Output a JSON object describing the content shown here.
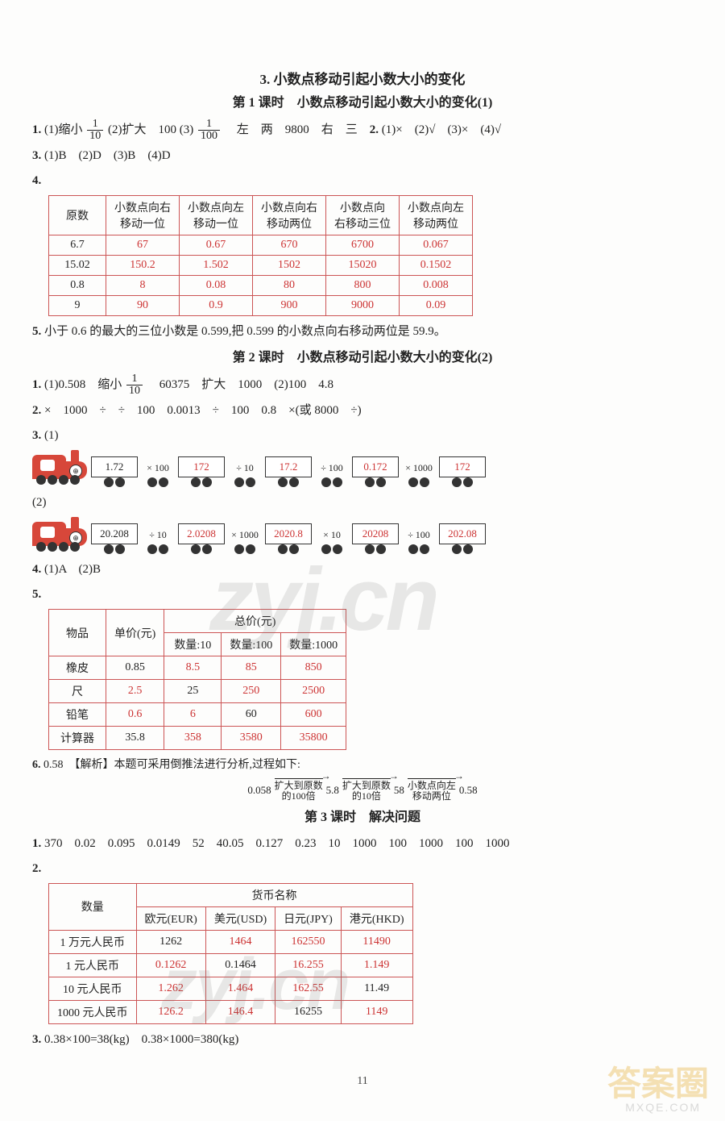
{
  "section3": {
    "title": "3. 小数点移动引起小数大小的变化",
    "lesson1": {
      "title": "第 1 课时　小数点移动引起小数大小的变化(1)",
      "q1": {
        "num": "1.",
        "parts": [
          "(1)缩小",
          "(2)扩大　100",
          "(3)",
          "　左　两　9800　右　三"
        ],
        "frac1_num": "1",
        "frac1_den": "10",
        "frac2_num": "1",
        "frac2_den": "100"
      },
      "q2": {
        "num": "2.",
        "text": "(1)×　(2)√　(3)×　(4)√"
      },
      "q3": {
        "num": "3.",
        "text": "(1)B　(2)D　(3)B　(4)D"
      },
      "q4": {
        "num": "4.",
        "headers": [
          "原数",
          "小数点向右\n移动一位",
          "小数点向左\n移动一位",
          "小数点向右\n移动两位",
          "小数点向\n右移动三位",
          "小数点向左\n移动两位"
        ],
        "rows": [
          [
            "6.7",
            "67",
            "0.67",
            "670",
            "6700",
            "0.067"
          ],
          [
            "15.02",
            "150.2",
            "1.502",
            "1502",
            "15020",
            "0.1502"
          ],
          [
            "0.8",
            "8",
            "0.08",
            "80",
            "800",
            "0.008"
          ],
          [
            "9",
            "90",
            "0.9",
            "900",
            "9000",
            "0.09"
          ]
        ],
        "red_cols": [
          1,
          2,
          3,
          4,
          5
        ]
      },
      "q5": {
        "num": "5.",
        "text": "小于 0.6 的最大的三位小数是 0.599,把 0.599 的小数点向右移动两位是 59.9。"
      }
    },
    "lesson2": {
      "title": "第 2 课时　小数点移动引起小数大小的变化(2)",
      "q1": {
        "num": "1.",
        "pre": "(1)0.508　缩小",
        "frac_num": "1",
        "frac_den": "10",
        "post": "　60375　扩大　1000　(2)100　4.8"
      },
      "q2": {
        "num": "2.",
        "text": "×　1000　÷　÷　100　0.0013　÷　100　0.8　×(或 8000　÷)"
      },
      "q3": {
        "num": "3.",
        "train1": {
          "label": "(1)",
          "cars": [
            {
              "v": "1.72",
              "red": false
            },
            {
              "op": "× 100"
            },
            {
              "v": "172",
              "red": true
            },
            {
              "op": "÷ 10"
            },
            {
              "v": "17.2",
              "red": true
            },
            {
              "op": "÷ 100"
            },
            {
              "v": "0.172",
              "red": true
            },
            {
              "op": "× 1000"
            },
            {
              "v": "172",
              "red": true
            }
          ]
        },
        "train2": {
          "label": "(2)",
          "cars": [
            {
              "v": "20.208",
              "red": false
            },
            {
              "op": "÷ 10"
            },
            {
              "v": "2.0208",
              "red": true
            },
            {
              "op": "× 1000"
            },
            {
              "v": "2020.8",
              "red": true
            },
            {
              "op": "× 10"
            },
            {
              "v": "20208",
              "red": true
            },
            {
              "op": "÷ 100"
            },
            {
              "v": "202.08",
              "red": true
            }
          ]
        }
      },
      "q4": {
        "num": "4.",
        "text": "(1)A　(2)B"
      },
      "q5": {
        "num": "5.",
        "head_item": "物品",
        "head_price": "单价(元)",
        "head_total": "总价(元)",
        "sub": [
          "数量:10",
          "数量:100",
          "数量:1000"
        ],
        "rows": [
          {
            "name": "橡皮",
            "price": "0.85",
            "vals": [
              "8.5",
              "85",
              "850"
            ],
            "red": [
              true,
              true,
              true
            ],
            "price_red": false
          },
          {
            "name": "尺",
            "price": "2.5",
            "vals": [
              "25",
              "250",
              "2500"
            ],
            "red": [
              false,
              true,
              true
            ],
            "price_red": true
          },
          {
            "name": "铅笔",
            "price": "0.6",
            "vals": [
              "6",
              "60",
              "600"
            ],
            "red": [
              true,
              false,
              true
            ],
            "price_red": true
          },
          {
            "name": "计算器",
            "price": "35.8",
            "vals": [
              "358",
              "3580",
              "35800"
            ],
            "red": [
              true,
              true,
              true
            ],
            "price_red": false
          }
        ]
      },
      "q6": {
        "num": "6.",
        "lead": "0.58　【解析】本题可采用倒推法进行分析,过程如下:",
        "chain": [
          "0.058",
          "扩大到原数\n的100倍",
          "5.8",
          "扩大到原数\n的10倍",
          "58",
          "小数点向左\n移动两位",
          "0.58"
        ]
      }
    },
    "lesson3": {
      "title": "第 3 课时　解决问题",
      "q1": {
        "num": "1.",
        "text": "370　0.02　0.095　0.0149　52　40.05　0.127　0.23　10　1000　100　1000　100　1000"
      },
      "q2": {
        "num": "2.",
        "head_qty": "数量",
        "head_curr": "货币名称",
        "currencies": [
          "欧元(EUR)",
          "美元(USD)",
          "日元(JPY)",
          "港元(HKD)"
        ],
        "rows": [
          {
            "q": "1 万元人民币",
            "v": [
              "1262",
              "1464",
              "162550",
              "11490"
            ],
            "red": [
              false,
              true,
              true,
              true
            ]
          },
          {
            "q": "1 元人民币",
            "v": [
              "0.1262",
              "0.1464",
              "16.255",
              "1.149"
            ],
            "red": [
              true,
              false,
              true,
              true
            ]
          },
          {
            "q": "10 元人民币",
            "v": [
              "1.262",
              "1.464",
              "162.55",
              "11.49"
            ],
            "red": [
              true,
              true,
              true,
              false
            ]
          },
          {
            "q": "1000 元人民币",
            "v": [
              "126.2",
              "146.4",
              "16255",
              "1149"
            ],
            "red": [
              true,
              true,
              false,
              true
            ]
          }
        ]
      },
      "q3": {
        "num": "3.",
        "text": "0.38×100=38(kg)　0.38×1000=380(kg)"
      }
    }
  },
  "page": "11",
  "watermark1": "zyj.cn",
  "watermark2": "zyj.cn",
  "watermark3": "答案圈",
  "watermark4": "MXQE.COM"
}
